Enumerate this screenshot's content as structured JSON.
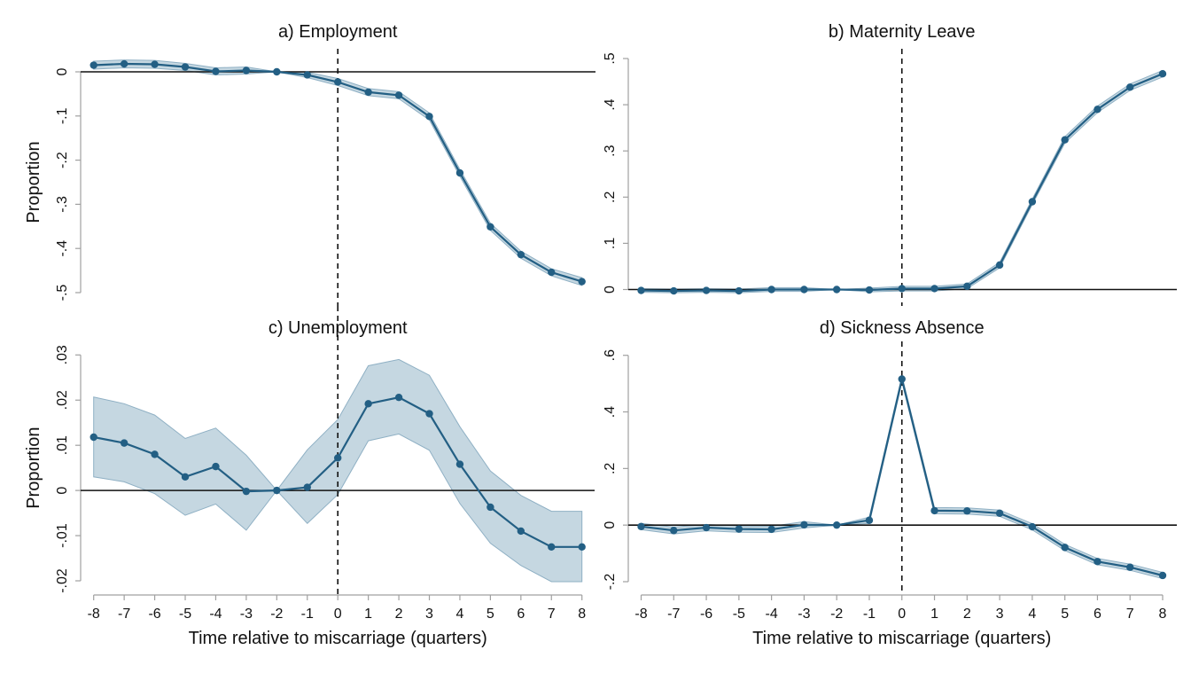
{
  "figure": {
    "x_ticks": [
      -8,
      -7,
      -6,
      -5,
      -4,
      -3,
      -2,
      -1,
      0,
      1,
      2,
      3,
      4,
      5,
      6,
      7,
      8
    ],
    "event_time": 0
  },
  "chart_data": [
    {
      "id": "a",
      "type": "line",
      "title": "a) Employment",
      "xlabel": "",
      "ylabel": "Proportion",
      "ylim": [
        -0.5,
        0
      ],
      "yticks": [
        0,
        -0.1,
        -0.2,
        -0.3,
        -0.4,
        -0.5
      ],
      "ytick_labels": [
        "0",
        "-.1",
        "-.2",
        "-.3",
        "-.4",
        "-.5"
      ],
      "x": [
        -8,
        -7,
        -6,
        -5,
        -4,
        -3,
        -2,
        -1,
        0,
        1,
        2,
        3,
        4,
        5,
        6,
        7,
        8
      ],
      "y": [
        0.015,
        0.018,
        0.017,
        0.011,
        0.001,
        0.003,
        0.0,
        -0.007,
        -0.023,
        -0.046,
        -0.053,
        -0.101,
        -0.229,
        -0.351,
        -0.414,
        -0.454,
        -0.475
      ],
      "ci_low": [
        0.006,
        0.009,
        0.008,
        0.003,
        -0.007,
        -0.005,
        0.0,
        -0.013,
        -0.031,
        -0.054,
        -0.061,
        -0.109,
        -0.237,
        -0.359,
        -0.422,
        -0.462,
        -0.484
      ],
      "ci_high": [
        0.024,
        0.027,
        0.026,
        0.019,
        0.009,
        0.011,
        0.0,
        -0.001,
        -0.015,
        -0.038,
        -0.045,
        -0.093,
        -0.221,
        -0.343,
        -0.406,
        -0.446,
        -0.466
      ],
      "grid": false,
      "zero_line": true
    },
    {
      "id": "b",
      "type": "line",
      "title": "b) Maternity Leave",
      "xlabel": "",
      "ylabel": "",
      "ylim": [
        0,
        0.5
      ],
      "yticks": [
        0,
        0.1,
        0.2,
        0.3,
        0.4,
        0.5
      ],
      "ytick_labels": [
        "0",
        ".1",
        ".2",
        ".3",
        ".4",
        ".5"
      ],
      "x": [
        -8,
        -7,
        -6,
        -5,
        -4,
        -3,
        -2,
        -1,
        0,
        1,
        2,
        3,
        4,
        5,
        6,
        7,
        8
      ],
      "y": [
        -0.002,
        -0.003,
        -0.002,
        -0.003,
        0.0,
        0.0,
        0.0,
        -0.001,
        0.002,
        0.002,
        0.007,
        0.053,
        0.19,
        0.324,
        0.39,
        0.438,
        0.467
      ],
      "ci_low": [
        -0.006,
        -0.007,
        -0.006,
        -0.007,
        -0.004,
        -0.004,
        0.0,
        -0.005,
        -0.003,
        -0.003,
        0.002,
        0.047,
        0.184,
        0.317,
        0.383,
        0.431,
        0.46
      ],
      "ci_high": [
        0.002,
        0.001,
        0.002,
        0.001,
        0.004,
        0.004,
        0.0,
        0.003,
        0.007,
        0.007,
        0.012,
        0.059,
        0.196,
        0.331,
        0.397,
        0.445,
        0.474
      ],
      "grid": false,
      "zero_line": true
    },
    {
      "id": "c",
      "type": "line",
      "title": "c) Unemployment",
      "xlabel": "Time relative to miscarriage (quarters)",
      "ylabel": "Proportion",
      "ylim": [
        -0.02,
        0.03
      ],
      "yticks": [
        0.03,
        0.02,
        0.01,
        0,
        -0.01,
        -0.02
      ],
      "ytick_labels": [
        ".03",
        ".02",
        ".01",
        "0",
        "-.01",
        "-.02"
      ],
      "x": [
        -8,
        -7,
        -6,
        -5,
        -4,
        -3,
        -2,
        -1,
        0,
        1,
        2,
        3,
        4,
        5,
        6,
        7,
        8
      ],
      "y": [
        0.0118,
        0.0105,
        0.008,
        0.003,
        0.0053,
        -0.0002,
        0.0,
        0.0007,
        0.0072,
        0.0192,
        0.0206,
        0.017,
        0.0058,
        -0.0037,
        -0.009,
        -0.0125,
        -0.0125
      ],
      "ci_low": [
        0.003,
        0.0019,
        -0.0007,
        -0.0055,
        -0.003,
        -0.0088,
        0.0,
        -0.0073,
        -0.0009,
        0.011,
        0.0125,
        0.0089,
        -0.0029,
        -0.0117,
        -0.0166,
        -0.0202,
        -0.0202
      ],
      "ci_high": [
        0.0207,
        0.0192,
        0.0167,
        0.0115,
        0.0138,
        0.0078,
        0.0,
        0.009,
        0.0157,
        0.0276,
        0.029,
        0.0255,
        0.0141,
        0.0043,
        -0.0011,
        -0.0046,
        -0.0046
      ],
      "grid": false,
      "zero_line": true
    },
    {
      "id": "d",
      "type": "line",
      "title": "d) Sickness Absence",
      "xlabel": "Time relative to miscarriage (quarters)",
      "ylabel": "",
      "ylim": [
        -0.2,
        0.6
      ],
      "yticks": [
        0.6,
        0.4,
        0.2,
        0,
        -0.2
      ],
      "ytick_labels": [
        ".6",
        ".4",
        ".2",
        "0",
        "-.2"
      ],
      "x": [
        -8,
        -7,
        -6,
        -5,
        -4,
        -3,
        -2,
        -1,
        0,
        1,
        2,
        3,
        4,
        5,
        6,
        7,
        8
      ],
      "y": [
        -0.005,
        -0.019,
        -0.009,
        -0.014,
        -0.015,
        0.001,
        0.0,
        0.017,
        0.516,
        0.051,
        0.05,
        0.042,
        -0.006,
        -0.079,
        -0.129,
        -0.149,
        -0.178
      ],
      "ci_low": [
        -0.016,
        -0.031,
        -0.02,
        -0.025,
        -0.026,
        -0.01,
        0.0,
        0.006,
        0.505,
        0.04,
        0.039,
        0.031,
        -0.017,
        -0.09,
        -0.14,
        -0.16,
        -0.189
      ],
      "ci_high": [
        0.006,
        -0.007,
        0.002,
        -0.003,
        -0.004,
        0.012,
        0.0,
        0.028,
        0.527,
        0.062,
        0.061,
        0.053,
        0.005,
        -0.068,
        -0.118,
        -0.138,
        -0.167
      ],
      "grid": false,
      "zero_line": true
    }
  ]
}
